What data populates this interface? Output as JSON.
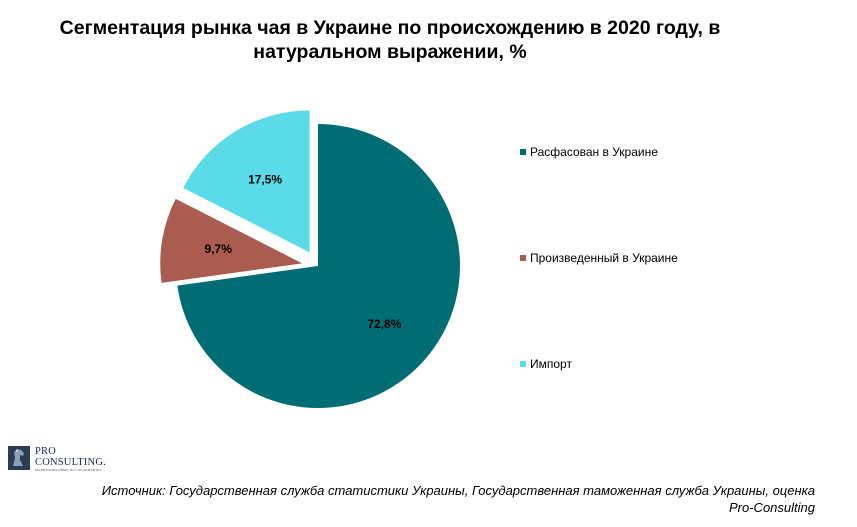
{
  "title": "Сегментация рынка чая в Украине по происхождению в 2020 году, в\nнатуральном выражении, %",
  "chart_data": {
    "type": "pie",
    "title": "Сегментация рынка чая в Украине по происхождению в 2020 году, в натуральном выражении, %",
    "slices": [
      {
        "name": "Расфасован в Украине",
        "value": 72.8,
        "label": "72,8%",
        "color": "#006C73",
        "exploded": false
      },
      {
        "name": "Произведенный в Украине",
        "value": 9.7,
        "label": "9,7%",
        "color": "#A95C4F",
        "exploded": true
      },
      {
        "name": "Импорт",
        "value": 17.5,
        "label": "17,5%",
        "color": "#5BDBE8",
        "exploded": true
      }
    ],
    "legend_position": "right",
    "start_angle": "12 o'clock, clockwise"
  },
  "legend": [
    {
      "label": "Расфасован в Украине",
      "color": "#006C73"
    },
    {
      "label": "Произведенный в Украине",
      "color": "#A95C4F"
    },
    {
      "label": "Импорт",
      "color": "#5BDBE8"
    }
  ],
  "logo": {
    "line1": "PRO",
    "line2": "CONSULTING.",
    "tagline": "МАРКЕТИНГОВЫЕ ИССЛЕДОВАНИЯ",
    "icon": "horse-logo-icon"
  },
  "source": "Источник: Государственная служба статистики Украины, Государственная таможенная служба Украины, оценка\nPro-Consulting"
}
